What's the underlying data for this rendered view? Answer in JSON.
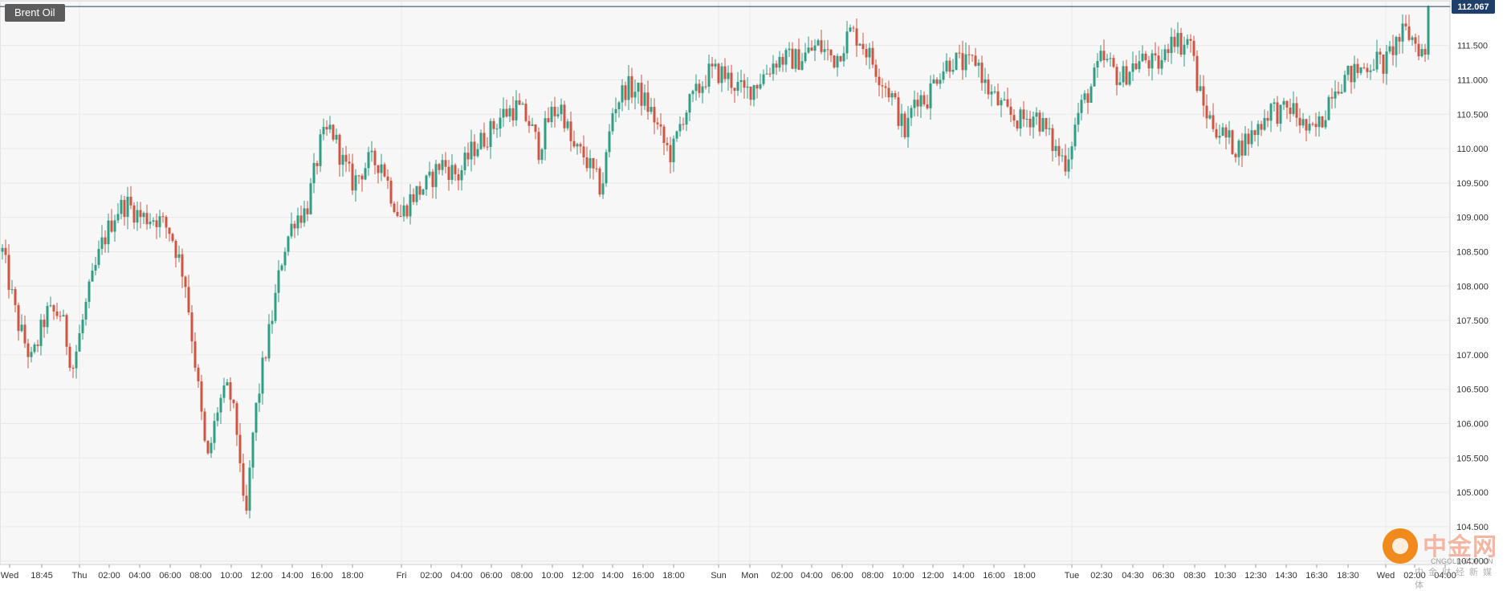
{
  "symbol": "Brent Oil",
  "colors": {
    "up": "#2e9e85",
    "down": "#d0553f",
    "grid": "#e8e8e8",
    "background": "#f7f7f7",
    "price_line": "#1f3f6a",
    "axis_text": "#333333"
  },
  "watermark": {
    "title": "中金网",
    "sub_latin": "CNGOLD.COM.CN",
    "sub_cn": "中金财经新媒体"
  },
  "chart_data": {
    "type": "candlestick",
    "title": "Brent Oil",
    "last_price": "112.067",
    "y_ticks": [
      "111.500",
      "111.000",
      "110.500",
      "110.000",
      "109.500",
      "109.000",
      "108.500",
      "108.000",
      "107.500",
      "107.000",
      "106.500",
      "106.000",
      "105.500",
      "105.000",
      "104.500",
      "104.000"
    ],
    "ylim": [
      103.95,
      112.15
    ],
    "x_ticks": [
      "Wed",
      "18:45",
      "Thu",
      "02:00",
      "04:00",
      "06:00",
      "08:00",
      "10:00",
      "12:00",
      "14:00",
      "16:00",
      "18:00",
      "Fri",
      "02:00",
      "04:00",
      "06:00",
      "08:00",
      "10:00",
      "12:00",
      "14:00",
      "16:00",
      "18:00",
      "Sun",
      "Mon",
      "02:00",
      "04:00",
      "06:00",
      "08:00",
      "10:00",
      "12:00",
      "14:00",
      "16:00",
      "18:00",
      "Tue",
      "02:30",
      "04:30",
      "06:30",
      "08:30",
      "10:30",
      "12:30",
      "14:30",
      "16:30",
      "18:30",
      "Wed",
      "02:00",
      "04:00"
    ],
    "grid": true,
    "anchors": [
      [
        0,
        108.5
      ],
      [
        10,
        107.5
      ],
      [
        20,
        106.9
      ],
      [
        30,
        107.6
      ],
      [
        40,
        107.6
      ],
      [
        48,
        106.8
      ],
      [
        58,
        107.8
      ],
      [
        68,
        108.6
      ],
      [
        78,
        109.1
      ],
      [
        85,
        109.2
      ],
      [
        95,
        109.0
      ],
      [
        105,
        109.0
      ],
      [
        115,
        108.8
      ],
      [
        125,
        108.1
      ],
      [
        133,
        106.7
      ],
      [
        140,
        105.4
      ],
      [
        148,
        106.3
      ],
      [
        155,
        106.5
      ],
      [
        162,
        105.7
      ],
      [
        166,
        104.4
      ],
      [
        172,
        106.0
      ],
      [
        178,
        106.8
      ],
      [
        185,
        107.6
      ],
      [
        192,
        108.5
      ],
      [
        200,
        109.0
      ],
      [
        208,
        109.1
      ],
      [
        218,
        110.1
      ],
      [
        225,
        110.3
      ],
      [
        233,
        109.8
      ],
      [
        240,
        109.5
      ],
      [
        250,
        109.8
      ],
      [
        260,
        109.8
      ],
      [
        265,
        109.4
      ],
      [
        272,
        109.0
      ],
      [
        280,
        109.3
      ],
      [
        292,
        109.5
      ],
      [
        300,
        109.8
      ],
      [
        312,
        109.6
      ],
      [
        322,
        110.0
      ],
      [
        332,
        110.2
      ],
      [
        342,
        110.5
      ],
      [
        352,
        110.6
      ],
      [
        360,
        110.4
      ],
      [
        367,
        110.0
      ],
      [
        375,
        110.5
      ],
      [
        383,
        110.6
      ],
      [
        390,
        110.0
      ],
      [
        398,
        109.9
      ],
      [
        405,
        109.6
      ],
      [
        410,
        109.4
      ],
      [
        418,
        110.6
      ],
      [
        427,
        110.9
      ],
      [
        436,
        110.8
      ],
      [
        445,
        110.5
      ],
      [
        452,
        110.1
      ],
      [
        458,
        109.9
      ],
      [
        466,
        110.5
      ],
      [
        475,
        110.8
      ],
      [
        483,
        111.1
      ],
      [
        492,
        111.1
      ],
      [
        498,
        111.0
      ],
      [
        508,
        110.8
      ],
      [
        518,
        111.0
      ],
      [
        530,
        111.3
      ],
      [
        545,
        111.3
      ],
      [
        558,
        111.5
      ],
      [
        570,
        111.3
      ],
      [
        580,
        111.7
      ],
      [
        587,
        111.6
      ],
      [
        597,
        111.2
      ],
      [
        602,
        111.0
      ],
      [
        608,
        110.8
      ],
      [
        613,
        110.5
      ],
      [
        618,
        110.2
      ],
      [
        625,
        110.8
      ],
      [
        632,
        110.7
      ],
      [
        640,
        111.1
      ],
      [
        650,
        111.3
      ],
      [
        660,
        111.2
      ],
      [
        667,
        111.3
      ],
      [
        673,
        110.9
      ],
      [
        680,
        110.7
      ],
      [
        688,
        110.5
      ],
      [
        697,
        110.4
      ],
      [
        707,
        110.5
      ],
      [
        713,
        110.3
      ],
      [
        720,
        110.0
      ],
      [
        728,
        109.8
      ],
      [
        736,
        110.5
      ],
      [
        745,
        110.9
      ],
      [
        752,
        111.3
      ],
      [
        758,
        111.2
      ],
      [
        765,
        111.0
      ],
      [
        773,
        111.2
      ],
      [
        782,
        111.3
      ],
      [
        789,
        111.2
      ],
      [
        795,
        111.3
      ],
      [
        800,
        111.7
      ],
      [
        807,
        111.5
      ],
      [
        813,
        111.6
      ],
      [
        817,
        111.0
      ],
      [
        822,
        110.6
      ],
      [
        827,
        110.4
      ],
      [
        835,
        110.2
      ],
      [
        845,
        110.0
      ],
      [
        855,
        110.2
      ],
      [
        862,
        110.4
      ],
      [
        868,
        110.6
      ],
      [
        875,
        110.5
      ],
      [
        882,
        110.6
      ],
      [
        888,
        110.4
      ],
      [
        895,
        110.2
      ],
      [
        903,
        110.4
      ],
      [
        910,
        110.9
      ],
      [
        917,
        111.0
      ],
      [
        925,
        111.1
      ],
      [
        933,
        111.2
      ],
      [
        940,
        111.3
      ],
      [
        946,
        111.2
      ],
      [
        952,
        111.5
      ],
      [
        960,
        111.7
      ],
      [
        965,
        111.6
      ],
      [
        972,
        111.4
      ],
      [
        978,
        111.1
      ]
    ]
  }
}
